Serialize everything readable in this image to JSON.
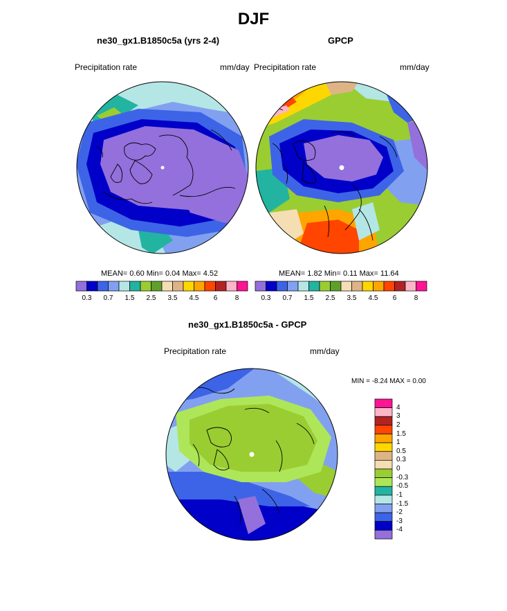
{
  "page_title": "DJF",
  "panels": [
    {
      "title": "ne30_gx1.B1850c5a (yrs 2-4)",
      "left_label": "Precipitation rate",
      "right_label": "mm/day",
      "stats": {
        "mean_label": "MEAN=",
        "mean": "0.60",
        "min_label": "Min=",
        "min": "0.04",
        "max_label": "Max=",
        "max": "4.52"
      }
    },
    {
      "title": "GPCP",
      "left_label": "Precipitation rate",
      "right_label": "mm/day",
      "stats": {
        "mean_label": "MEAN=",
        "mean": "1.82",
        "min_label": "Min=",
        "min": "0.11",
        "max_label": "Max=",
        "max": "11.64"
      }
    },
    {
      "title": "ne30_gx1.B1850c5a - GPCP",
      "left_label": "Precipitation rate",
      "right_label": "mm/day",
      "stats_text": "MIN =  -8.24 MAX =   0.00"
    }
  ],
  "colorbar_horizontal": {
    "colors": [
      "#9370DB",
      "#0000C8",
      "#3D64E6",
      "#82A0F0",
      "#B4E6E6",
      "#22B4A0",
      "#9ACD32",
      "#5FA02A",
      "#F5DEB3",
      "#DEB487",
      "#FFD700",
      "#FFA500",
      "#FF4500",
      "#B22222",
      "#FFB4C8",
      "#FF1493"
    ],
    "tick_labels": [
      "0.3",
      "0.7",
      "1.5",
      "2.5",
      "3.5",
      "4.5",
      "6",
      "8"
    ]
  },
  "colorbar_vertical": {
    "colors_top_to_bottom": [
      "#FF1493",
      "#FFB4C8",
      "#B22222",
      "#FF4500",
      "#FFA500",
      "#FFD700",
      "#DEB487",
      "#F5DEB3",
      "#9ACD32",
      "#AEE65A",
      "#22B4A0",
      "#B4E6E6",
      "#82A0F0",
      "#3D64E6",
      "#0000C8",
      "#9370DB"
    ],
    "tick_labels_top_to_bottom": [
      "4",
      "3",
      "2",
      "1.5",
      "1",
      "0.5",
      "0.3",
      "0",
      "-0.3",
      "-0.5",
      "-1",
      "-1.5",
      "-2",
      "-3",
      "-4"
    ]
  },
  "map_colors": {
    "purple": "#9370DB",
    "dark_blue": "#0000C8",
    "blue": "#3D64E6",
    "light_blue": "#82A0F0",
    "pale_cyan": "#B4E6E6",
    "teal": "#22B4A0",
    "yellow_green": "#9ACD32",
    "olive": "#5FA02A",
    "wheat": "#F5DEB3",
    "tan": "#DEB487",
    "gold": "#FFD700",
    "orange": "#FFA500",
    "red_orange": "#FF4500",
    "firebrick": "#B22222",
    "pink": "#FFB4C8",
    "magenta": "#FF1493",
    "light_green": "#AEE65A",
    "coastline": "#000000",
    "pole_marker": "#FFFFFF"
  }
}
